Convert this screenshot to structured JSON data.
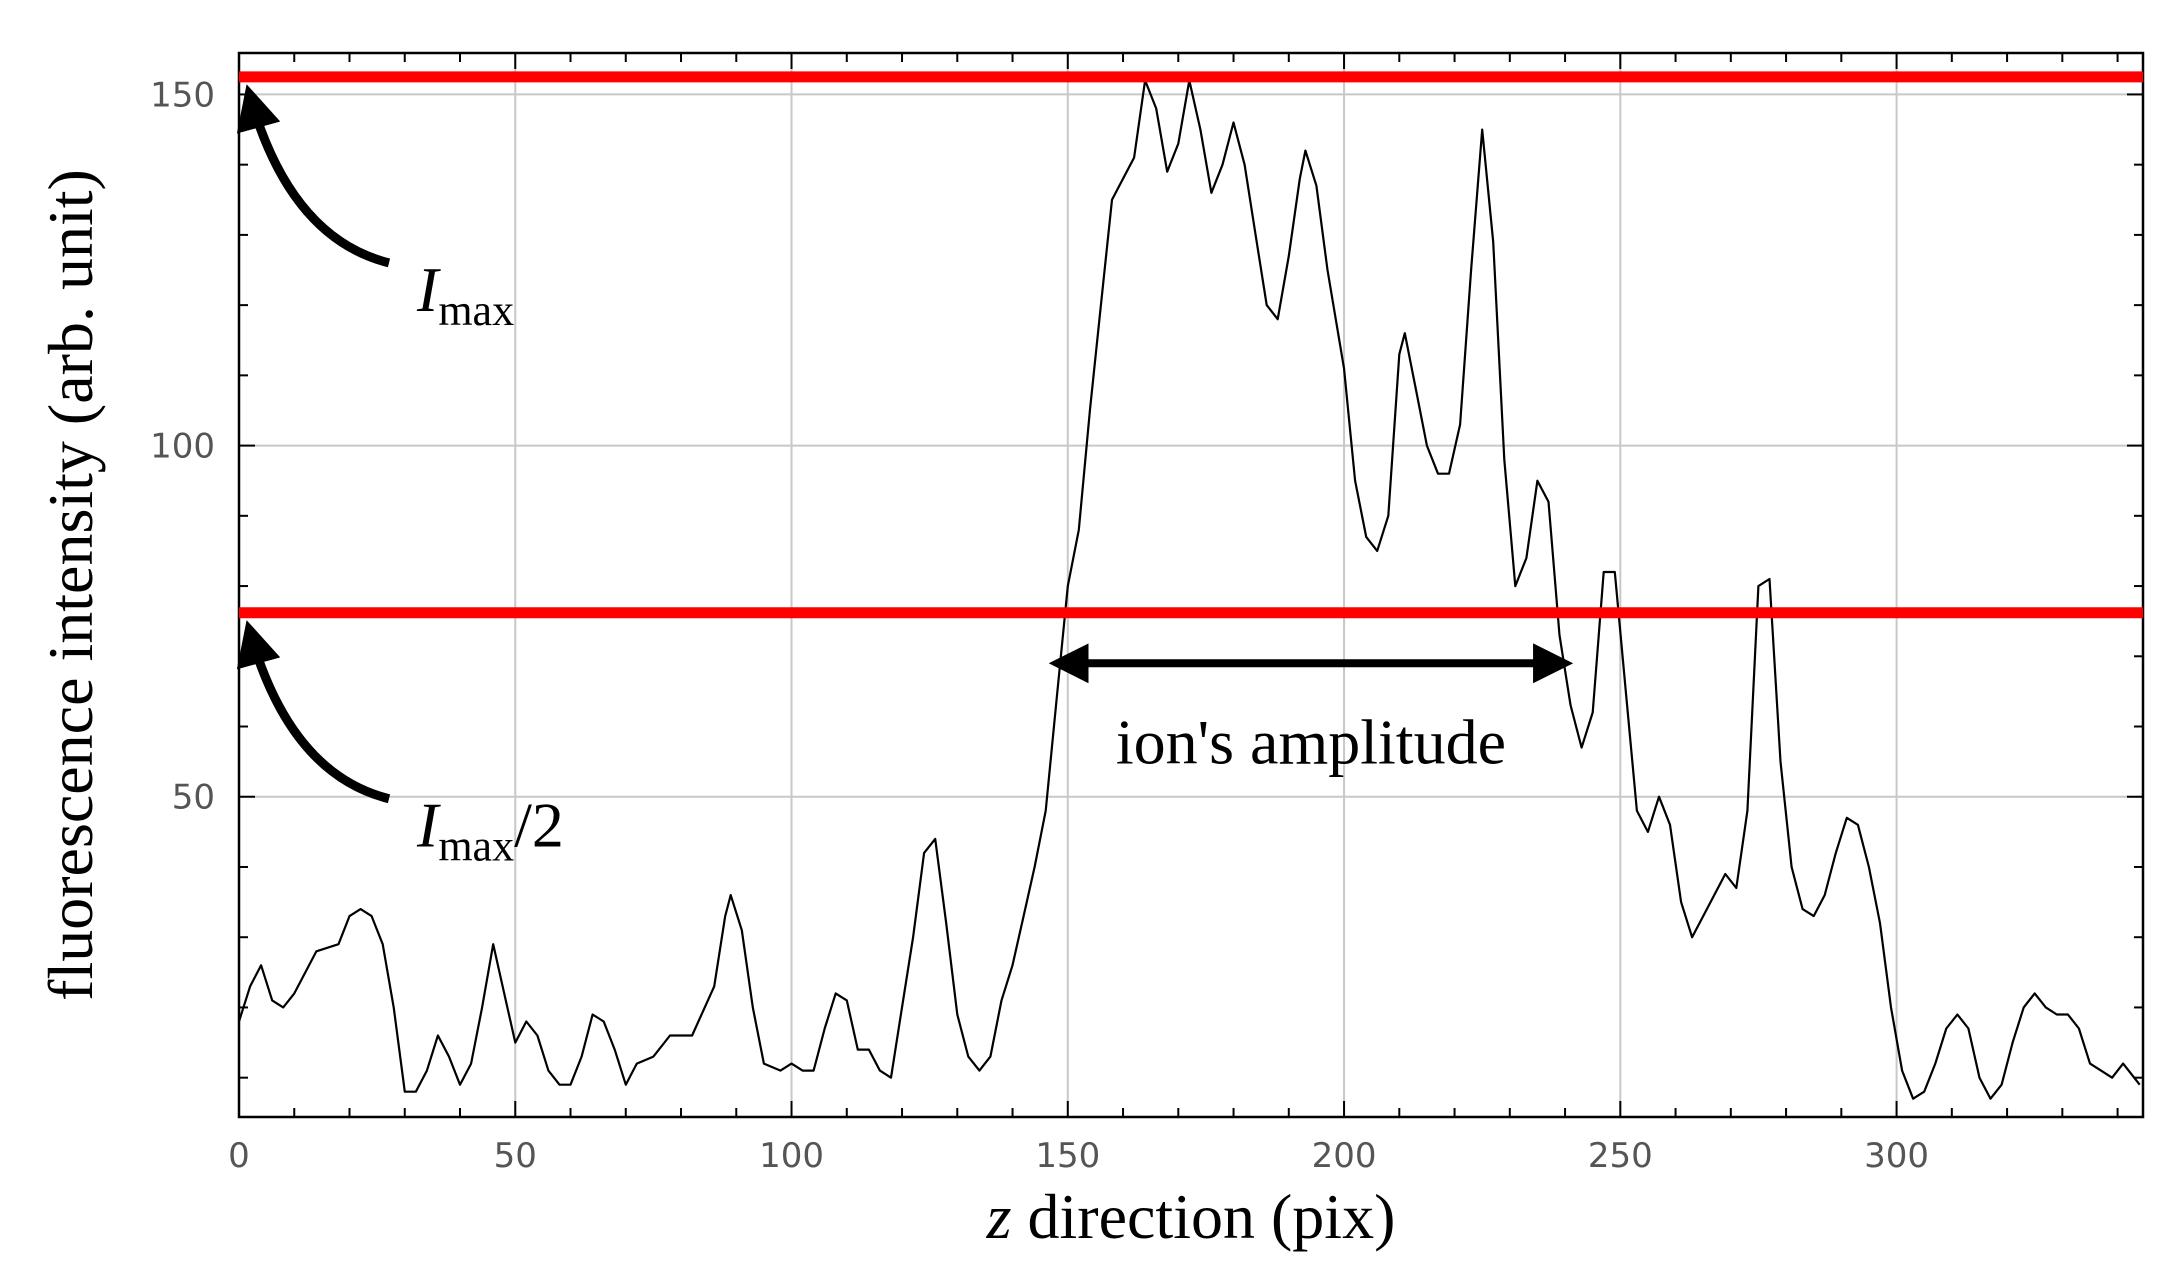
{
  "chart_data": {
    "type": "line",
    "x_label": "z direction (pix)",
    "x_label_italic": "z",
    "y_label": "fluorescence intensity (arb. unit)",
    "x": [
      0,
      2,
      4,
      6,
      8,
      10,
      14,
      18,
      20,
      22,
      24,
      26,
      28,
      30,
      32,
      34,
      36,
      38,
      40,
      42,
      44,
      46,
      48,
      50,
      52,
      54,
      56,
      58,
      60,
      62,
      64,
      66,
      68,
      70,
      72,
      75,
      78,
      82,
      86,
      88,
      89,
      91,
      93,
      95,
      98,
      100,
      102,
      104,
      106,
      108,
      110,
      112,
      114,
      116,
      118,
      120,
      122,
      124,
      126,
      128,
      130,
      132,
      134,
      136,
      138,
      140,
      142,
      144,
      146,
      148,
      150,
      152,
      154,
      156,
      158,
      160,
      162,
      164,
      166,
      168,
      170,
      172,
      174,
      176,
      178,
      180,
      182,
      184,
      186,
      188,
      190,
      192,
      193,
      195,
      197,
      200,
      202,
      204,
      206,
      208,
      210,
      211,
      213,
      215,
      217,
      219,
      221,
      223,
      225,
      227,
      229,
      231,
      233,
      235,
      237,
      239,
      241,
      243,
      245,
      247,
      249,
      251,
      253,
      255,
      257,
      259,
      261,
      263,
      265,
      267,
      269,
      271,
      273,
      275,
      277,
      279,
      281,
      283,
      285,
      287,
      289,
      291,
      293,
      295,
      297,
      299,
      301,
      303,
      305,
      307,
      309,
      311,
      313,
      315,
      317,
      319,
      321,
      323,
      325,
      327,
      329,
      331,
      333,
      335,
      337,
      339,
      341,
      344
    ],
    "values": [
      18,
      23,
      26,
      21,
      20,
      22,
      28,
      29,
      33,
      34,
      33,
      29,
      20,
      8,
      8,
      11,
      16,
      13,
      9,
      12,
      20,
      29,
      22,
      15,
      18,
      16,
      11,
      9,
      9,
      13,
      19,
      18,
      14,
      9,
      12,
      13,
      16,
      16,
      23,
      33,
      36,
      31,
      20,
      12,
      11,
      12,
      11,
      11,
      17,
      22,
      21,
      14,
      14,
      11,
      10,
      20,
      30,
      42,
      44,
      32,
      19,
      13,
      11,
      13,
      21,
      26,
      33,
      40,
      48,
      64,
      80,
      88,
      105,
      120,
      135,
      138,
      141,
      152,
      148,
      139,
      143,
      152,
      145,
      136,
      140,
      146,
      140,
      130,
      120,
      118,
      127,
      138,
      142,
      137,
      125,
      111,
      95,
      87,
      85,
      90,
      113,
      116,
      108,
      100,
      96,
      96,
      103,
      125,
      145,
      129,
      98,
      80,
      84,
      95,
      92,
      73,
      63,
      57,
      62,
      82,
      82,
      65,
      48,
      45,
      50,
      46,
      35,
      30,
      33,
      36,
      39,
      37,
      48,
      80,
      81,
      55,
      40,
      34,
      33,
      36,
      42,
      47,
      46,
      40,
      32,
      20,
      11,
      7,
      8,
      12,
      17,
      19,
      17,
      10,
      7,
      9,
      15,
      20,
      22,
      20,
      19,
      19,
      17,
      12,
      11,
      10,
      12,
      9
    ],
    "color": "#000000",
    "xlim": [
      0,
      344.6
    ],
    "ylim": [
      4.4,
      155.9
    ],
    "xticks": [
      0,
      50,
      100,
      150,
      200,
      250,
      300
    ],
    "yticks": [
      50,
      100,
      150
    ],
    "xminorticks": [
      10,
      20,
      30,
      40,
      60,
      70,
      80,
      90,
      110,
      120,
      130,
      140,
      160,
      170,
      180,
      190,
      210,
      220,
      230,
      240,
      260,
      270,
      280,
      290,
      310,
      320,
      330,
      340
    ],
    "yminorticks": [
      10,
      20,
      30,
      40,
      60,
      70,
      80,
      90,
      110,
      120,
      130,
      140
    ],
    "grid": true,
    "reference_lines": [
      {
        "value": 152.5,
        "color": "#ff0000",
        "label": {
          "main": "I",
          "sub": "max",
          "suffix": ""
        }
      },
      {
        "value": 76.2,
        "color": "#ff0000",
        "label": {
          "main": "I",
          "sub": "max",
          "suffix": "/2"
        }
      }
    ],
    "span_arrow": {
      "from": 148,
      "to": 240,
      "y": 69,
      "label": "ion's amplitude"
    }
  }
}
